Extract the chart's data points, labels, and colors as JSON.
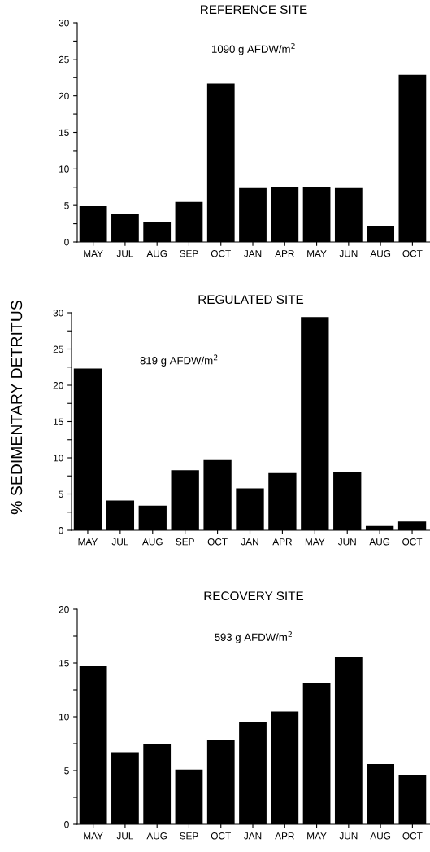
{
  "chart_data": [
    {
      "type": "bar",
      "title": "REFERENCE SITE",
      "annotations": [
        "1090 g AFDW/m$^{2}$"
      ],
      "categories": [
        "MAY",
        "JUL",
        "AUG",
        "SEP",
        "OCT",
        "JAN",
        "APR",
        "MAY",
        "JUN",
        "AUG",
        "OCT"
      ],
      "values": [
        4.9,
        3.8,
        2.7,
        5.5,
        21.7,
        7.4,
        7.5,
        7.5,
        7.4,
        2.2,
        22.9
      ],
      "color": "#000000",
      "ylim": [
        0,
        30
      ],
      "yticks": [
        0,
        {
          "value": 2.5,
          "label": null
        },
        5,
        {
          "value": 7.5,
          "label": null
        },
        10,
        {
          "value": 12.5,
          "label": null
        },
        15,
        {
          "value": 17.5,
          "label": null
        },
        20,
        {
          "value": 22.5,
          "label": null
        },
        25,
        {
          "value": 27.5,
          "label": null
        },
        30
      ],
      "grid": false,
      "legend": false
    },
    {
      "type": "bar",
      "title": "REGULATED SITE",
      "ylabel": "% SEDIMENTARY DETRITUS",
      "annotations": [
        "819 g AFDW/m$^{2}$"
      ],
      "categories": [
        "MAY",
        "JUL",
        "AUG",
        "SEP",
        "OCT",
        "JAN",
        "APR",
        "MAY",
        "JUN",
        "AUG",
        "OCT"
      ],
      "values": [
        22.3,
        4.1,
        3.4,
        8.3,
        9.7,
        5.8,
        7.9,
        29.4,
        8.0,
        0.6,
        1.2
      ],
      "color": "#000000",
      "ylim": [
        0,
        30
      ],
      "yticks": [
        0,
        {
          "value": 2.5,
          "label": null
        },
        5,
        {
          "value": 7.5,
          "label": null
        },
        10,
        {
          "value": 12.5,
          "label": null
        },
        15,
        {
          "value": 17.5,
          "label": null
        },
        20,
        {
          "value": 22.5,
          "label": null
        },
        25,
        {
          "value": 27.5,
          "label": null
        },
        30
      ],
      "grid": false,
      "legend": false
    },
    {
      "type": "bar",
      "title": "RECOVERY SITE",
      "annotations": [
        "593 g AFDW/m$^{2}$"
      ],
      "categories": [
        "MAY",
        "JUL",
        "AUG",
        "SEP",
        "OCT",
        "JAN",
        "APR",
        "MAY",
        "JUN",
        "AUG",
        "OCT"
      ],
      "values": [
        14.7,
        6.7,
        7.5,
        5.1,
        7.8,
        9.5,
        10.5,
        13.1,
        15.6,
        5.6,
        4.6
      ],
      "color": "#000000",
      "ylim": [
        0,
        20
      ],
      "yticks": [
        0,
        {
          "value": 2.5,
          "label": null
        },
        5,
        {
          "value": 7.5,
          "label": null
        },
        10,
        {
          "value": 12.5,
          "label": null
        },
        15,
        {
          "value": 17.5,
          "label": null
        },
        20
      ],
      "grid": false,
      "legend": false
    }
  ]
}
